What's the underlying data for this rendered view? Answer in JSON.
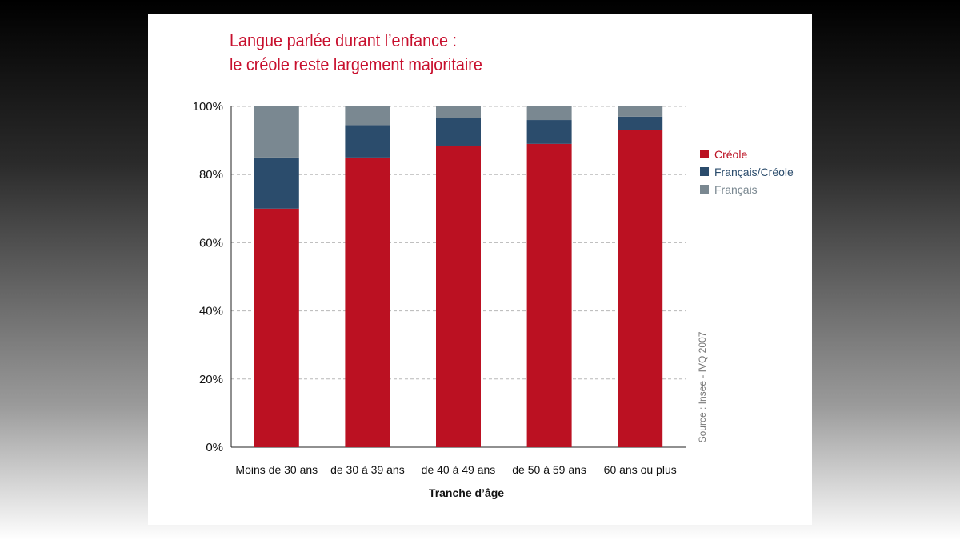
{
  "chart_data": {
    "type": "bar",
    "stacked": true,
    "title": "Langue parlée durant l’enfance :",
    "subtitle": "le créole reste largement majoritaire",
    "xlabel": "Tranche d’âge",
    "ylabel": "",
    "ylim": [
      0,
      100
    ],
    "yticks": [
      "0%",
      "20%",
      "40%",
      "60%",
      "80%",
      "100%"
    ],
    "grid": true,
    "legend_position": "right",
    "categories": [
      "Moins de 30 ans",
      "de 30 à 39 ans",
      "de 40 à 49 ans",
      "de 50 à 59 ans",
      "60 ans ou plus"
    ],
    "series": [
      {
        "name": "Créole",
        "color": "#bb1122",
        "values": [
          70,
          85,
          88.5,
          89,
          93
        ]
      },
      {
        "name": "Français/Créole",
        "color": "#2b4c6c",
        "values": [
          15,
          9.5,
          8,
          7,
          4
        ]
      },
      {
        "name": "Français",
        "color": "#7a8891",
        "values": [
          15,
          5.5,
          3.5,
          4,
          3
        ]
      }
    ],
    "source": "Source : Insee - IVQ 2007"
  }
}
